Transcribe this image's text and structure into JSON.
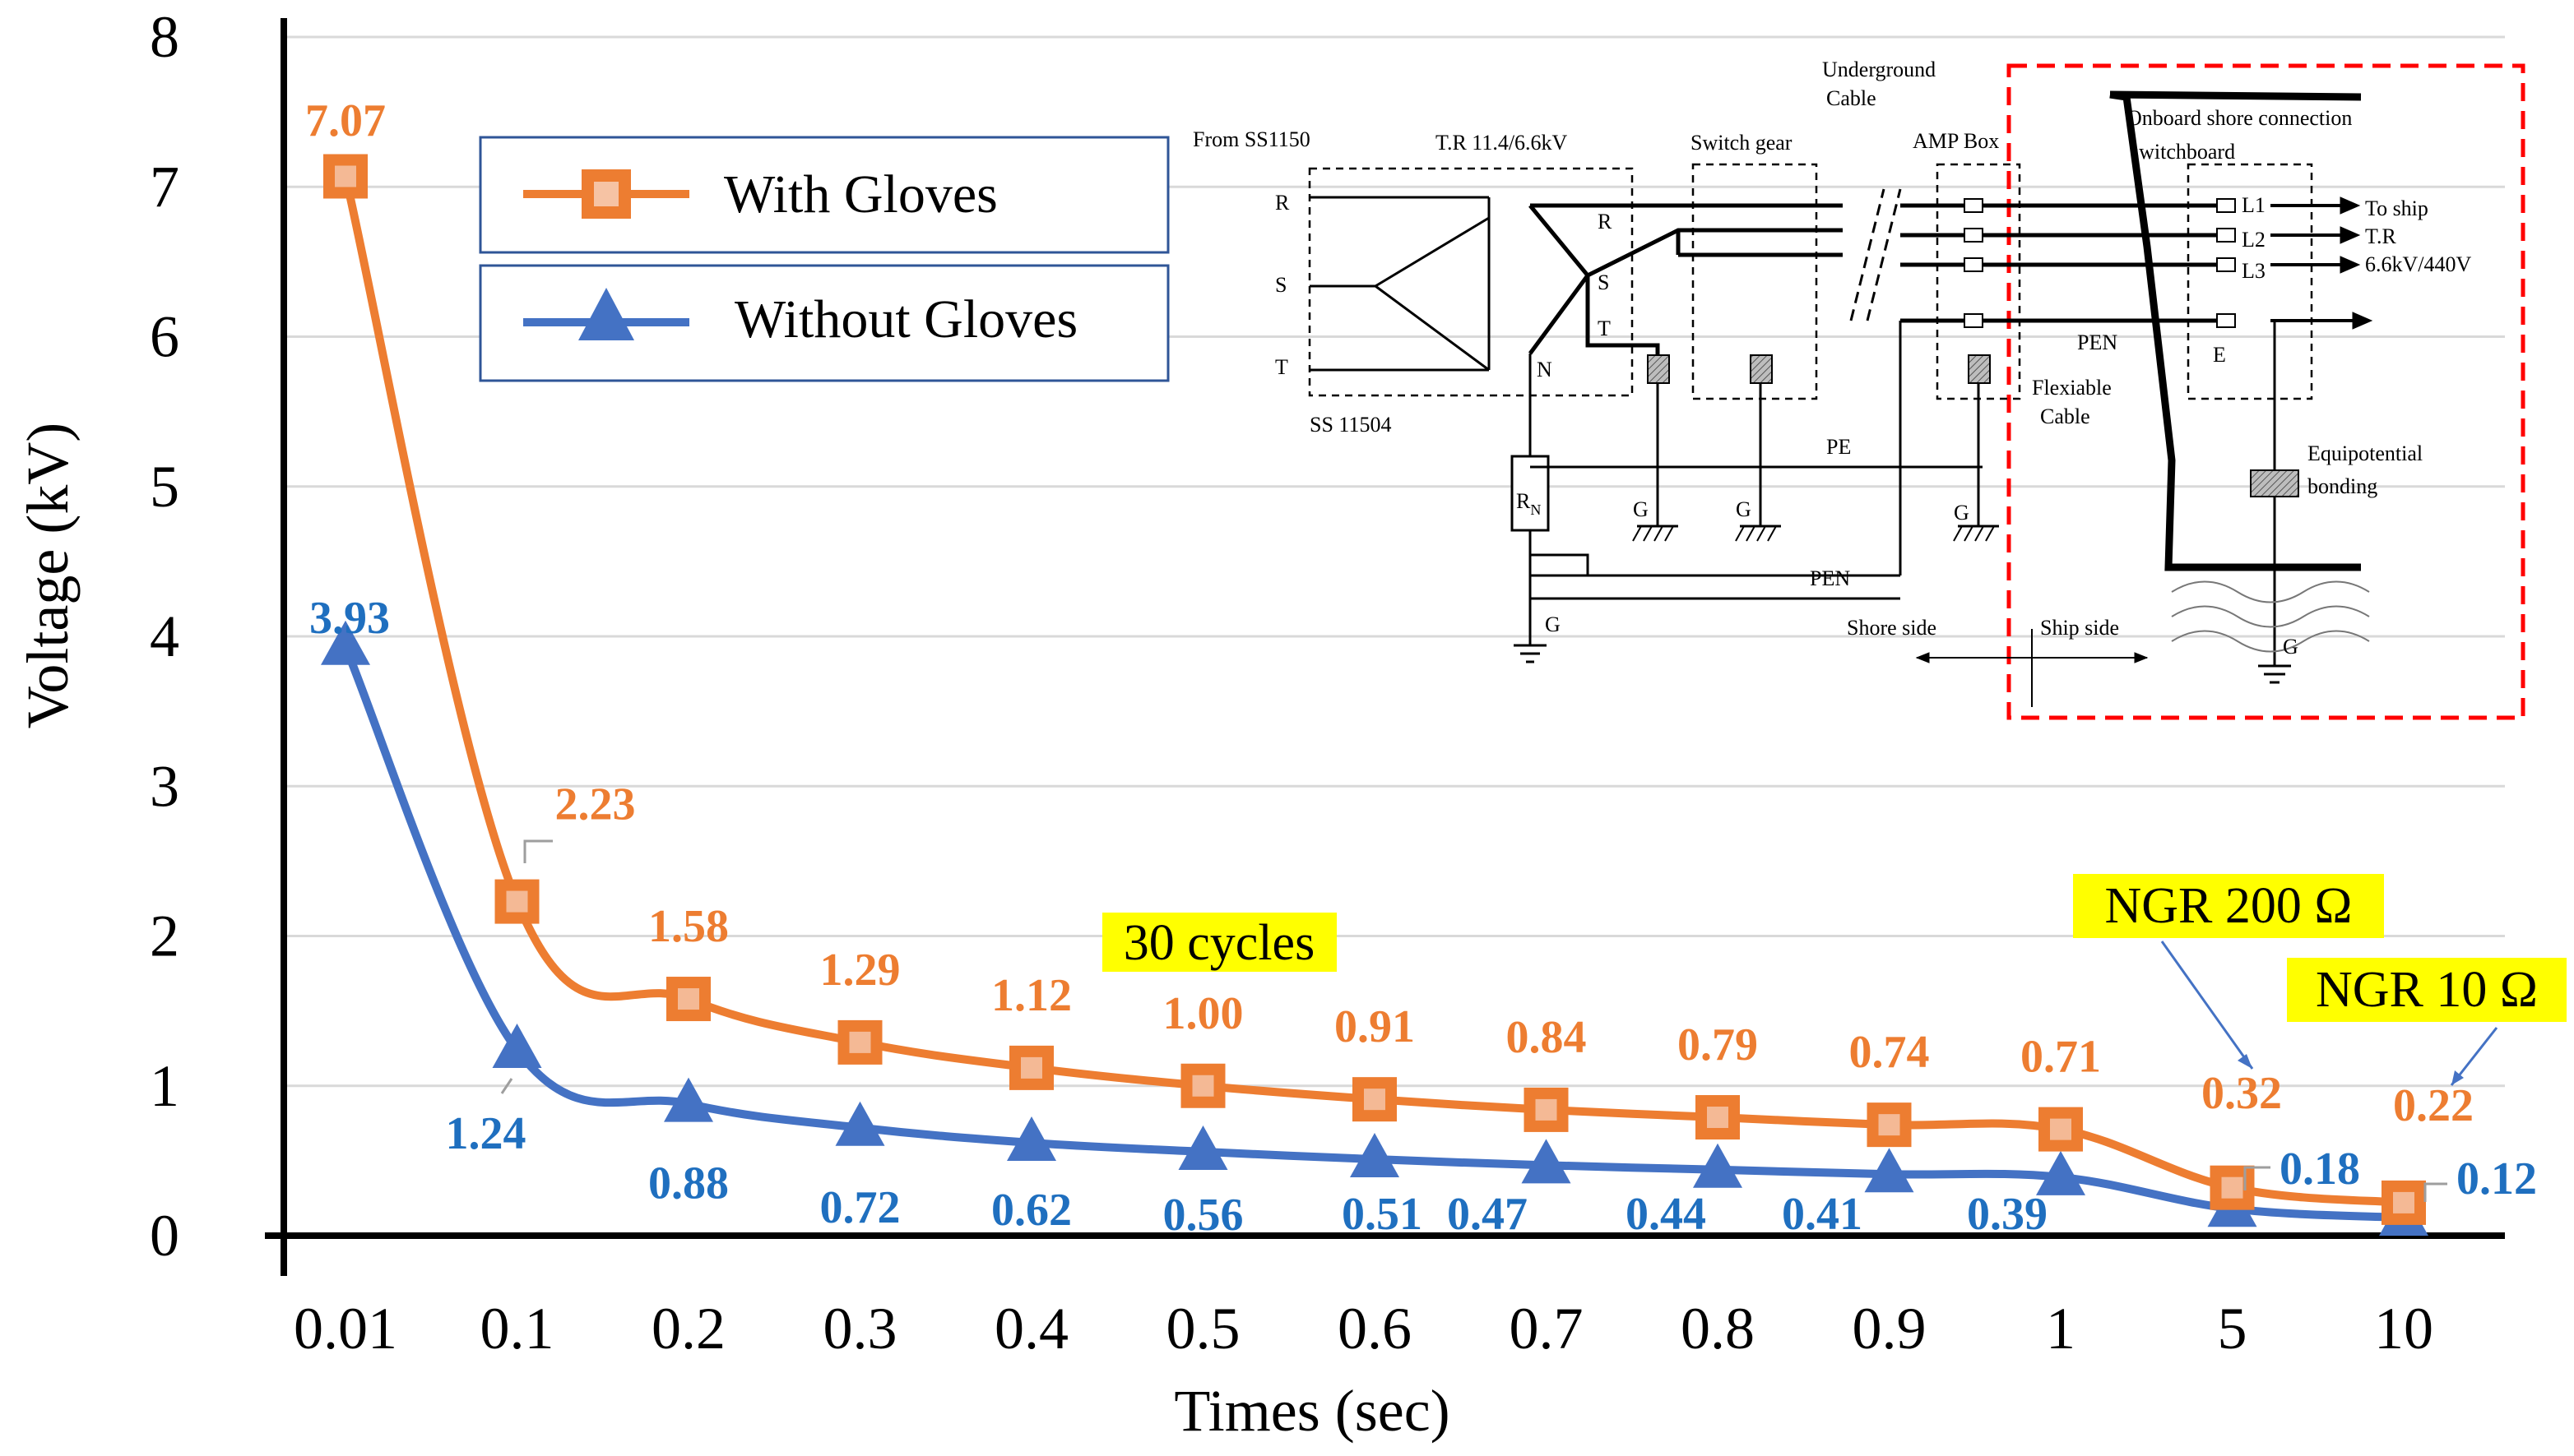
{
  "chart_data": {
    "type": "line",
    "title": "",
    "xlabel": "Times (sec)",
    "ylabel": "Voltage (kV)",
    "categories": [
      "0.01",
      "0.1",
      "0.2",
      "0.3",
      "0.4",
      "0.5",
      "0.6",
      "0.7",
      "0.8",
      "0.9",
      "1",
      "5",
      "10"
    ],
    "ylim": [
      0,
      8
    ],
    "yticks": [
      "0",
      "1",
      "2",
      "3",
      "4",
      "5",
      "6",
      "7",
      "8"
    ],
    "grid": true,
    "legend_position": "top-left",
    "series": [
      {
        "name": "With Gloves",
        "marker": "square",
        "color": "#ED7D31",
        "label_color": "#ED7D31",
        "values": [
          7.07,
          2.23,
          1.58,
          1.29,
          1.12,
          1.0,
          0.91,
          0.84,
          0.79,
          0.74,
          0.71,
          0.32,
          0.22
        ],
        "labels": [
          "7.07",
          "2.23",
          "1.58",
          "1.29",
          "1.12",
          "1.00",
          "0.91",
          "0.84",
          "0.79",
          "0.74",
          "0.71",
          "0.32",
          "0.22"
        ]
      },
      {
        "name": "Without Gloves",
        "marker": "triangle",
        "color": "#4472C4",
        "label_color": "#1F6FBF",
        "values": [
          3.93,
          1.24,
          0.88,
          0.72,
          0.62,
          0.56,
          0.51,
          0.47,
          0.44,
          0.41,
          0.39,
          0.18,
          0.12
        ],
        "labels": [
          "3.93",
          "1.24",
          "0.88",
          "0.72",
          "0.62",
          "0.56",
          "0.51",
          "0.47",
          "0.44",
          "0.41",
          "0.39",
          "0.18",
          "0.12"
        ]
      }
    ],
    "annotations": {
      "cycles": "30 cycles",
      "ngr200": "NGR 200 Ω",
      "ngr10": "NGR 10 Ω",
      "highlight_color": "#FFFF00"
    }
  },
  "inset": {
    "from_ss": "From SS1150",
    "tr": "T.R 11.4/6.6kV",
    "switch_gear": "Switch gear",
    "underground_1": "Underground",
    "underground_2": "Cable",
    "amp_box": "AMP Box",
    "onboard_1": "Onboard shore connection",
    "onboard_2": "switchboard",
    "ss_bottom": "SS 11504",
    "r": "R",
    "s": "S",
    "t": "T",
    "n": "N",
    "r2": "R",
    "s2": "S",
    "t2": "T",
    "l1": "L1",
    "l2": "L2",
    "l3": "L3",
    "to_ship": "To ship",
    "tr2": "T.R",
    "volt": "6.6kV/440V",
    "pen1": "PEN",
    "e": "E",
    "flex_1": "Flexiable",
    "flex_2": "Cable",
    "pe": "PE",
    "pen2": "PEN",
    "rn": "R",
    "rn_sub": "N",
    "g1": "G",
    "g2": "G",
    "g3": "G",
    "g4": "G",
    "g5": "G",
    "equip_1": "Equipotential",
    "equip_2": "bonding",
    "shore_side": "Shore side",
    "ship_side": "Ship side"
  }
}
